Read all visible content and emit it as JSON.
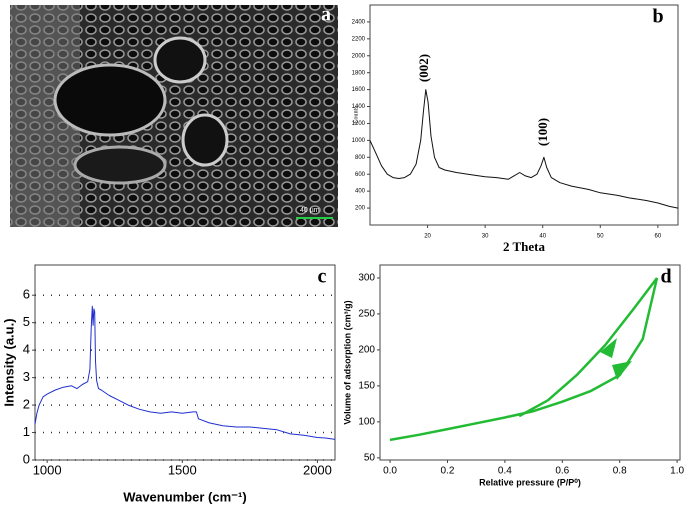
{
  "chart_data": [
    {
      "type": "image",
      "label": "a",
      "scale_bar": "40 µm"
    },
    {
      "type": "line",
      "label": "b",
      "x_label": "2 Theta",
      "y_label": "Counts",
      "annotations": [
        "(002)",
        "(100)"
      ],
      "xlim": [
        10,
        63.5
      ],
      "ylim": [
        0,
        2600
      ],
      "xticks": [
        20,
        30,
        40,
        50,
        60
      ],
      "yticks": [
        200,
        400,
        600,
        800,
        1000,
        1200,
        1400,
        1600,
        1800,
        2000,
        2200,
        2400
      ],
      "grid": false,
      "series": [
        {
          "color": "#111111",
          "x": [
            10,
            11,
            12,
            13,
            14,
            15,
            16,
            17,
            18,
            18.8,
            19.3,
            19.7,
            20.1,
            20.6,
            21.2,
            22,
            23,
            25,
            27,
            30,
            32,
            34,
            35,
            36,
            37,
            38,
            39,
            39.7,
            40.2,
            40.7,
            41.5,
            43,
            45,
            48,
            50,
            53,
            55,
            58,
            60,
            62,
            63.5
          ],
          "values": [
            1000,
            850,
            700,
            600,
            560,
            550,
            560,
            600,
            720,
            1000,
            1350,
            1600,
            1450,
            1050,
            800,
            680,
            650,
            620,
            600,
            570,
            560,
            540,
            580,
            620,
            580,
            560,
            600,
            700,
            800,
            680,
            560,
            500,
            460,
            420,
            380,
            350,
            320,
            290,
            260,
            220,
            200
          ]
        }
      ]
    },
    {
      "type": "line",
      "label": "c",
      "x_label": "Wavenumber (cm⁻¹)",
      "y_label": "Intensity (a.u.)",
      "xlim": [
        955,
        2065
      ],
      "ylim": [
        0,
        7.1
      ],
      "xticks": [
        1000,
        1500,
        2000
      ],
      "yticks": [
        0,
        1,
        2,
        3,
        4,
        5,
        6
      ],
      "grid": true,
      "series": [
        {
          "color": "#1f2fd0",
          "x": [
            955,
            962,
            970,
            985,
            1000,
            1030,
            1060,
            1090,
            1110,
            1130,
            1150,
            1158,
            1163,
            1167,
            1170,
            1173,
            1176,
            1179,
            1183,
            1190,
            1200,
            1230,
            1260,
            1300,
            1340,
            1380,
            1420,
            1460,
            1500,
            1540,
            1552,
            1560,
            1600,
            1650,
            1700,
            1750,
            1800,
            1850,
            1900,
            1950,
            2000,
            2030,
            2065
          ],
          "values": [
            1.3,
            1.7,
            2.0,
            2.3,
            2.4,
            2.55,
            2.65,
            2.7,
            2.6,
            2.75,
            2.85,
            3.3,
            4.8,
            5.6,
            4.9,
            5.5,
            5.4,
            3.6,
            2.9,
            2.6,
            2.55,
            2.35,
            2.2,
            2.0,
            1.85,
            1.75,
            1.7,
            1.75,
            1.7,
            1.75,
            1.75,
            1.5,
            1.35,
            1.25,
            1.2,
            1.2,
            1.15,
            1.1,
            0.95,
            0.9,
            0.82,
            0.8,
            0.75
          ]
        }
      ]
    },
    {
      "type": "line",
      "label": "d",
      "x_label": "Relative pressure (P/P⁰)",
      "y_label": "Volume of adsorption (cm³/g)",
      "xlim": [
        -0.035,
        1.01
      ],
      "ylim": [
        47,
        318
      ],
      "xticks": [
        {
          "value": 0,
          "label": "0.0"
        },
        0.2,
        0.4,
        0.6,
        0.8,
        {
          "value": 1,
          "label": "1.0"
        }
      ],
      "yticks": [
        50,
        100,
        150,
        200,
        250,
        300
      ],
      "grid": false,
      "series": [
        {
          "color": "#22bb33",
          "x": [
            0,
            0.1,
            0.2,
            0.3,
            0.4,
            0.5,
            0.6,
            0.7,
            0.8,
            0.88,
            0.93
          ],
          "values": [
            75,
            82,
            90,
            98,
            106,
            115,
            128,
            143,
            165,
            215,
            300
          ]
        },
        {
          "color": "#22bb33",
          "x": [
            0.93,
            0.85,
            0.75,
            0.65,
            0.55,
            0.45
          ],
          "values": [
            300,
            258,
            207,
            165,
            130,
            108
          ]
        }
      ]
    }
  ]
}
